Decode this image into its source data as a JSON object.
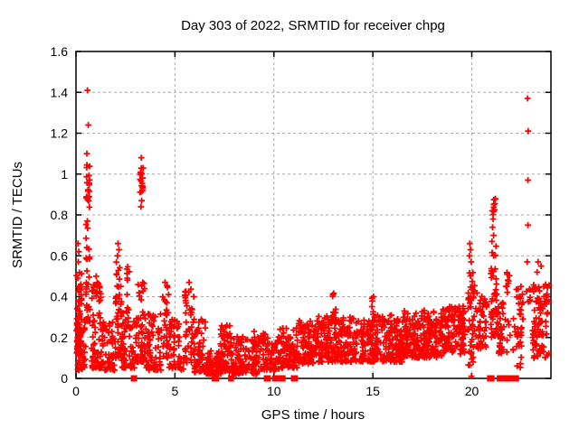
{
  "chart": {
    "title": "Day 303 of 2022, SRMTID for receiver chpg"
  },
  "chart_data": {
    "type": "scatter",
    "title": "Day 303 of 2022, SRMTID for receiver chpg",
    "xlabel": "GPS time / hours",
    "ylabel": "SRMTID / TECUs",
    "xlim": [
      0,
      24
    ],
    "ylim": [
      0,
      1.6
    ],
    "xticks": [
      0,
      5,
      10,
      15,
      20
    ],
    "xtick_labels": [
      "0",
      "5",
      "10",
      "15",
      "20"
    ],
    "yticks": [
      0,
      0.2,
      0.4,
      0.6,
      0.8,
      1.0,
      1.2,
      1.4,
      1.6
    ],
    "ytick_labels": [
      "0",
      "0.2",
      "0.4",
      "0.6",
      "0.8",
      "1",
      "1.2",
      "1.4",
      "1.6"
    ],
    "grid": true,
    "grid_color": "#a8a8a8",
    "marker": "plus",
    "marker_color": "#ff0000",
    "border_color": "#000000",
    "seed": 1303,
    "cluster_fields": [
      "x0",
      "x1",
      "ymin",
      "ymax",
      "n",
      "bias"
    ],
    "clusters": [
      [
        0.02,
        0.28,
        0.12,
        0.52,
        60,
        1.6
      ],
      [
        0.05,
        0.5,
        0.04,
        0.3,
        45,
        1.4
      ],
      [
        0.5,
        0.72,
        0.28,
        0.8,
        30,
        1.6
      ],
      [
        0.52,
        0.7,
        0.8,
        1.06,
        22,
        1.0
      ],
      [
        0.78,
        1.3,
        0.05,
        0.48,
        70,
        1.7
      ],
      [
        1.3,
        2.0,
        0.04,
        0.28,
        60,
        1.4
      ],
      [
        2.0,
        2.3,
        0.1,
        0.57,
        45,
        1.5
      ],
      [
        2.3,
        2.55,
        0.05,
        0.33,
        40,
        1.4
      ],
      [
        2.55,
        2.72,
        0.25,
        0.56,
        14,
        1.2
      ],
      [
        2.7,
        3.1,
        0.05,
        0.3,
        35,
        1.4
      ],
      [
        3.12,
        3.5,
        0.08,
        0.47,
        45,
        1.5
      ],
      [
        3.22,
        3.42,
        0.9,
        1.04,
        18,
        1.0
      ],
      [
        3.5,
        4.35,
        0.04,
        0.32,
        70,
        1.5
      ],
      [
        4.38,
        4.68,
        0.1,
        0.46,
        30,
        1.3
      ],
      [
        4.7,
        5.45,
        0.04,
        0.3,
        55,
        1.5
      ],
      [
        5.5,
        5.92,
        0.07,
        0.44,
        40,
        1.4
      ],
      [
        5.9,
        6.55,
        0.03,
        0.3,
        60,
        1.7
      ],
      [
        6.55,
        7.35,
        0.02,
        0.14,
        70,
        1.3
      ],
      [
        7.3,
        7.85,
        0.03,
        0.27,
        60,
        1.5
      ],
      [
        7.85,
        9.35,
        0.02,
        0.21,
        130,
        1.4
      ],
      [
        9.35,
        10.25,
        0.04,
        0.22,
        80,
        1.4
      ],
      [
        10.25,
        11.25,
        0.05,
        0.25,
        90,
        1.4
      ],
      [
        11.25,
        12.25,
        0.07,
        0.29,
        110,
        1.4
      ],
      [
        12.25,
        13.25,
        0.08,
        0.31,
        110,
        1.4
      ],
      [
        12.95,
        13.15,
        0.25,
        0.42,
        10,
        1.1
      ],
      [
        13.25,
        14.55,
        0.08,
        0.3,
        130,
        1.4
      ],
      [
        14.55,
        15.25,
        0.08,
        0.33,
        80,
        1.4
      ],
      [
        14.85,
        15.05,
        0.25,
        0.42,
        8,
        1.1
      ],
      [
        15.25,
        16.55,
        0.08,
        0.31,
        130,
        1.4
      ],
      [
        16.55,
        17.55,
        0.1,
        0.33,
        110,
        1.3
      ],
      [
        17.55,
        18.75,
        0.1,
        0.34,
        130,
        1.3
      ],
      [
        18.75,
        19.65,
        0.12,
        0.36,
        100,
        1.2
      ],
      [
        19.8,
        20.15,
        0.05,
        0.52,
        45,
        1.5
      ],
      [
        20.2,
        20.75,
        0.14,
        0.42,
        45,
        1.3
      ],
      [
        20.95,
        21.25,
        0.2,
        0.66,
        40,
        1.3
      ],
      [
        21.03,
        21.2,
        0.8,
        0.88,
        9,
        1.0
      ],
      [
        21.25,
        21.6,
        0.12,
        0.42,
        35,
        1.3
      ],
      [
        21.7,
        21.95,
        0.42,
        0.52,
        9,
        1.0
      ],
      [
        21.6,
        22.2,
        0.12,
        0.3,
        12,
        1.3
      ],
      [
        22.25,
        22.6,
        0.05,
        0.46,
        35,
        1.2
      ],
      [
        22.75,
        22.95,
        0.32,
        0.45,
        7,
        1.1
      ],
      [
        23.05,
        23.92,
        0.1,
        0.46,
        95,
        1.2
      ]
    ],
    "outliers": [
      [
        0.58,
        1.41
      ],
      [
        0.62,
        1.24
      ],
      [
        0.55,
        1.1
      ],
      [
        0.1,
        0.66
      ],
      [
        0.14,
        0.62
      ],
      [
        0.12,
        0.57
      ],
      [
        1.02,
        0.5
      ],
      [
        2.12,
        0.66
      ],
      [
        2.17,
        0.63
      ],
      [
        2.1,
        0.6
      ],
      [
        3.3,
        1.08
      ],
      [
        3.32,
        0.87
      ],
      [
        3.28,
        0.84
      ],
      [
        4.5,
        0.47
      ],
      [
        5.72,
        0.47
      ],
      [
        5.95,
        0.4
      ],
      [
        9.0,
        0.23
      ],
      [
        19.9,
        0.66
      ],
      [
        19.93,
        0.63
      ],
      [
        19.88,
        0.6
      ],
      [
        19.97,
        0.57
      ],
      [
        19.98,
        0.01
      ],
      [
        21.08,
        0.78
      ],
      [
        21.05,
        0.74
      ],
      [
        21.1,
        0.7
      ],
      [
        21.02,
        0.67
      ],
      [
        22.82,
        1.37
      ],
      [
        22.85,
        1.21
      ],
      [
        22.84,
        0.97
      ],
      [
        22.84,
        0.75
      ],
      [
        22.8,
        0.57
      ],
      [
        23.35,
        0.57
      ],
      [
        23.5,
        0.55
      ],
      [
        23.3,
        0.52
      ]
    ],
    "zero_runs": [
      [
        2.86,
        3.0
      ],
      [
        6.95,
        7.15
      ],
      [
        7.78,
        7.81
      ],
      [
        7.86,
        7.89
      ],
      [
        9.58,
        9.75
      ],
      [
        10.0,
        10.12
      ],
      [
        10.3,
        10.5
      ],
      [
        10.95,
        11.12
      ],
      [
        20.86,
        21.06
      ],
      [
        21.35,
        21.43
      ],
      [
        21.52,
        22.3
      ]
    ]
  }
}
